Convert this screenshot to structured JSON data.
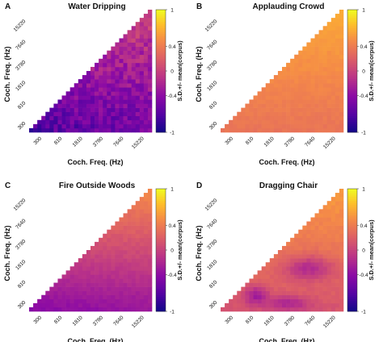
{
  "chart_data": [
    {
      "type": "heatmap",
      "panel": "A",
      "title": "Water Dripping",
      "xlabel": "Coch. Freq. (Hz)",
      "ylabel": "Coch. Freq. (Hz)",
      "x_ticks": [
        "300",
        "810",
        "1810",
        "3780",
        "7640",
        "15220"
      ],
      "y_ticks": [
        "300",
        "810",
        "1810",
        "3780",
        "7640",
        "15220"
      ],
      "colorbar": {
        "label": "S.D.+/- mean(corpus)",
        "ticks": [
          "1",
          "0.4",
          "0",
          "-0.4",
          "-1"
        ],
        "range": [
          -1,
          1
        ]
      },
      "pattern": {
        "base": -0.28,
        "row_gradient": 0.55,
        "low_freq_dip": -0.18,
        "noise": 0.18
      }
    },
    {
      "type": "heatmap",
      "panel": "B",
      "title": "Applauding Crowd",
      "xlabel": "Coch. Freq. (Hz)",
      "ylabel": "Coch. Freq. (Hz)",
      "x_ticks": [
        "300",
        "810",
        "1810",
        "3780",
        "7640",
        "15220"
      ],
      "y_ticks": [
        "300",
        "810",
        "1810",
        "3780",
        "7640",
        "15220"
      ],
      "colorbar": {
        "label": "S.D.+/- mean(corpus)",
        "ticks": [
          "1",
          "0.4",
          "0",
          "-0.4",
          "-1"
        ],
        "range": [
          -1,
          1
        ]
      },
      "pattern": {
        "base": 0.5,
        "row_gradient": 0.3,
        "low_freq_dip": 0,
        "noise": 0.03
      }
    },
    {
      "type": "heatmap",
      "panel": "C",
      "title": "Fire Outside Woods",
      "xlabel": "Coch. Freq. (Hz)",
      "ylabel": "Coch. Freq. (Hz)",
      "x_ticks": [
        "300",
        "810",
        "1810",
        "3780",
        "7640",
        "15220"
      ],
      "y_ticks": [
        "300",
        "810",
        "1810",
        "3780",
        "7640",
        "15220"
      ],
      "colorbar": {
        "label": "S.D.+/- mean(corpus)",
        "ticks": [
          "1",
          "0.4",
          "0",
          "-0.4",
          "-1"
        ],
        "range": [
          -1,
          1
        ]
      },
      "pattern": {
        "base": 0.05,
        "row_gradient": 0.8,
        "low_freq_dip": -0.1,
        "noise": 0.04
      }
    },
    {
      "type": "heatmap",
      "panel": "D",
      "title": "Dragging Chair",
      "xlabel": "Coch. Freq. (Hz)",
      "ylabel": "Coch. Freq. (Hz)",
      "x_ticks": [
        "300",
        "810",
        "1810",
        "3780",
        "7640",
        "15220"
      ],
      "y_ticks": [
        "300",
        "810",
        "1810",
        "3780",
        "7640",
        "15220"
      ],
      "colorbar": {
        "label": "S.D.+/- mean(corpus)",
        "ticks": [
          "1",
          "0.4",
          "0",
          "-0.4",
          "-1"
        ],
        "range": [
          -1,
          1
        ]
      },
      "pattern": {
        "base": 0.35,
        "row_gradient": 0.45,
        "low_freq_dip": 0,
        "noise": 0.04,
        "dark_band": true
      }
    }
  ]
}
